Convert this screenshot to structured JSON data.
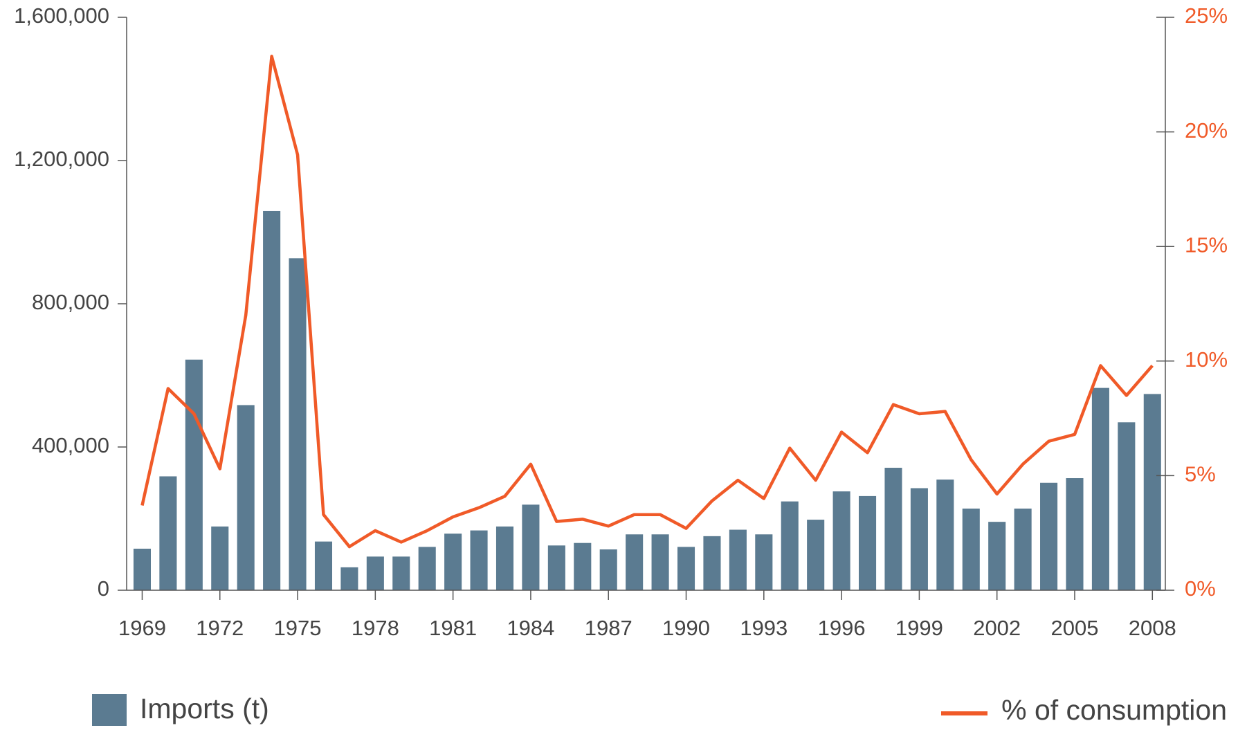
{
  "chart_data": {
    "type": "bar",
    "x": [
      1969,
      1970,
      1971,
      1972,
      1973,
      1974,
      1975,
      1976,
      1977,
      1978,
      1979,
      1980,
      1981,
      1982,
      1983,
      1984,
      1985,
      1986,
      1987,
      1988,
      1989,
      1990,
      1991,
      1992,
      1993,
      1994,
      1995,
      1996,
      1997,
      1998,
      1999,
      2000,
      2001,
      2002,
      2003,
      2004,
      2005,
      2006,
      2007,
      2008
    ],
    "series": [
      {
        "name": "Imports (t)",
        "type": "bar",
        "color": "#5b7b91",
        "values": [
          116000,
          318000,
          644000,
          178000,
          517000,
          1059000,
          927000,
          136000,
          64000,
          94000,
          94000,
          121000,
          158000,
          167000,
          178000,
          239000,
          125000,
          132000,
          114000,
          156000,
          156000,
          121000,
          151000,
          169000,
          156000,
          248000,
          197000,
          276000,
          263000,
          342000,
          285000,
          309000,
          228000,
          191000,
          228000,
          300000,
          313000,
          565000,
          469000,
          548000
        ]
      },
      {
        "name": "% of consumption",
        "type": "line",
        "axis": "y2",
        "color": "#f05a28",
        "values": [
          3.7,
          8.8,
          7.7,
          5.3,
          12.0,
          23.3,
          19.0,
          3.3,
          1.9,
          2.6,
          2.1,
          2.6,
          3.2,
          3.6,
          4.1,
          5.5,
          3.0,
          3.1,
          2.8,
          3.3,
          3.3,
          2.7,
          3.9,
          4.8,
          4.0,
          6.2,
          4.8,
          6.9,
          6.0,
          8.1,
          7.7,
          7.8,
          5.7,
          4.2,
          5.5,
          6.5,
          6.8,
          9.8,
          8.5,
          9.8
        ]
      }
    ],
    "xlim": [
      1968.4,
      2008.5
    ],
    "xticks": [
      1969,
      1972,
      1975,
      1978,
      1981,
      1984,
      1987,
      1990,
      1993,
      1996,
      1999,
      2002,
      2005,
      2008
    ],
    "ylim": [
      0,
      1600000
    ],
    "yticks": [
      0,
      {
        "value": 400000,
        "label": "400,000"
      },
      {
        "value": 800000,
        "label": "800,000"
      },
      {
        "value": 1200000,
        "label": "1,200,000"
      },
      {
        "value": 1600000,
        "label": "1,600,000"
      }
    ],
    "y2lim": [
      0,
      25
    ],
    "y2ticks": [
      {
        "value": 0,
        "label": "0%"
      },
      {
        "value": 5,
        "label": "5%"
      },
      {
        "value": 10,
        "label": "10%"
      },
      {
        "value": 15,
        "label": "15%"
      },
      {
        "value": 20,
        "label": "20%"
      },
      {
        "value": 25,
        "label": "25%"
      }
    ]
  }
}
